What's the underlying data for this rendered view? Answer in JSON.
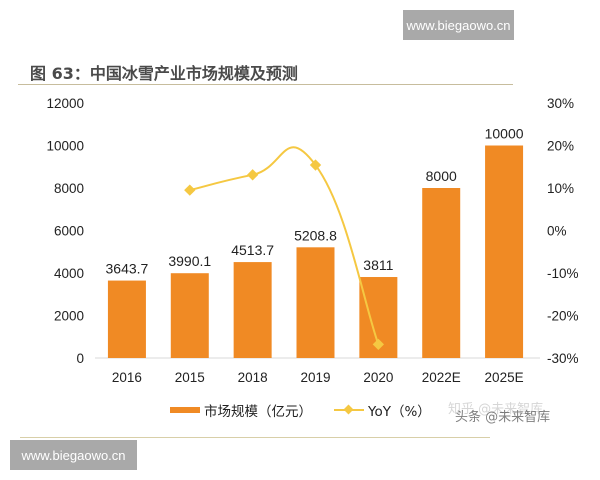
{
  "watermark": {
    "top": "www.biegaowo.cn",
    "bottom": "www.biegaowo.cn"
  },
  "figure": {
    "title": "图 63：中国冰雪产业市场规模及预测"
  },
  "legend": {
    "bar_label": "市场规模（亿元）",
    "line_label": "YoY（%）"
  },
  "credit": {
    "text": "头条 @未来智库",
    "faded": "知乎 @未来智库"
  },
  "colors": {
    "bar": "#f08a24",
    "line": "#f5c842",
    "rule": "#c7bd9d"
  },
  "chart_data": {
    "type": "bar",
    "title": "图 63：中国冰雪产业市场规模及预测",
    "categories": [
      "2016",
      "2015",
      "2018",
      "2019",
      "2020",
      "2022E",
      "2025E"
    ],
    "series": [
      {
        "name": "市场规模（亿元）",
        "type": "bar",
        "axis": "left",
        "values": [
          3643.7,
          3990.1,
          4513.7,
          5208.8,
          3811,
          8000,
          10000
        ],
        "labels": [
          "3643.7",
          "3990.1",
          "4513.7",
          "5208.8",
          "3811",
          "8000",
          "10000"
        ]
      },
      {
        "name": "YoY（%）",
        "type": "line",
        "axis": "right",
        "values": [
          null,
          9.5,
          13.1,
          15.4,
          -26.8,
          null,
          null
        ]
      }
    ],
    "left_axis": {
      "ylim": [
        0,
        12000
      ],
      "ticks": [
        "0",
        "2000",
        "4000",
        "6000",
        "8000",
        "10000",
        "12000"
      ]
    },
    "right_axis": {
      "ylim": [
        -30,
        30
      ],
      "ticks": [
        "-30%",
        "-20%",
        "-10%",
        "0%",
        "10%",
        "20%",
        "30%"
      ]
    },
    "xlabel": "",
    "ylabel": "",
    "grid": false,
    "legend_position": "bottom"
  }
}
